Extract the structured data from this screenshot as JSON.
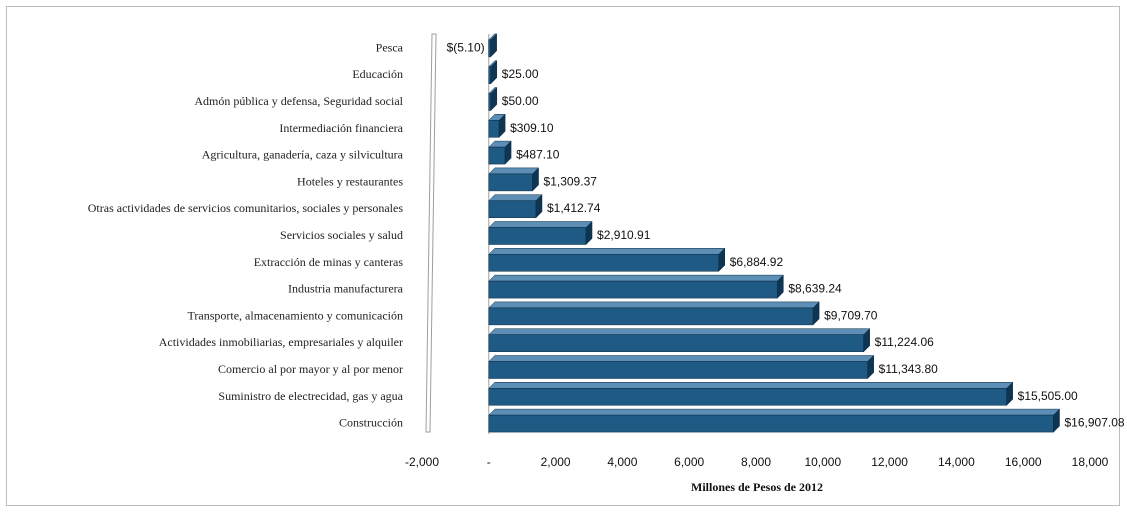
{
  "chart_data": {
    "type": "bar",
    "orientation": "horizontal",
    "title": "",
    "xlabel": "Millones de Pesos de 2012",
    "ylabel": "",
    "xlim": [
      -2000,
      18000
    ],
    "grid": false,
    "legend": "none",
    "categories": [
      "Pesca",
      "Educación",
      "Admón pública y defensa, Seguridad social",
      "Intermediación financiera",
      "Agricultura, ganadería, caza y silvicultura",
      "Hoteles y restaurantes",
      "Otras actividades de servicios comunitarios, sociales y personales",
      "Servicios sociales y salud",
      "Extracción de minas y canteras",
      "Industria manufacturera",
      "Transporte, almacenamiento  y comunicación",
      "Actividades inmobiliarias, empresariales  y alquiler",
      "Comercio al por mayor y al por menor",
      "Suministro de electrecidad,  gas y agua",
      "Construcción"
    ],
    "values": [
      -5.1,
      25.0,
      50.0,
      309.1,
      487.1,
      1309.37,
      1412.74,
      2910.91,
      6884.92,
      8639.24,
      9709.7,
      11224.06,
      11343.8,
      15505.0,
      16907.08
    ],
    "data_labels": [
      "$(5.10)",
      "$25.00",
      "$50.00",
      "$309.10",
      "$487.10",
      "$1,309.37",
      "$1,412.74",
      "$2,910.91",
      "$6,884.92",
      "$8,639.24",
      "$9,709.70",
      "$11,224.06",
      "$11,343.80",
      "$15,505.00",
      "$16,907.08"
    ],
    "x_ticks": [
      -2000,
      0,
      2000,
      4000,
      6000,
      8000,
      10000,
      12000,
      14000,
      16000,
      18000
    ],
    "x_tick_labels": [
      "-2,000",
      "-",
      "2,000",
      "4,000",
      "6,000",
      "8,000",
      "10,000",
      "12,000",
      "14,000",
      "16,000",
      "18,000"
    ],
    "colors": {
      "bar_front": "#1f5a85",
      "bar_side": "#0e3553",
      "bar_top": "#5d8fb6",
      "wall": "#9e9e9e"
    }
  }
}
